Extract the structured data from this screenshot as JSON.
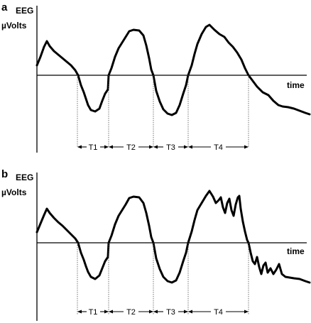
{
  "panels": [
    {
      "letter": "a",
      "y_label_line1": "EEG",
      "y_label_line2": "µVolts",
      "x_label": "time",
      "intervals": [
        "T1",
        "T2",
        "T3",
        "T4"
      ]
    },
    {
      "letter": "b",
      "y_label_line1": "EEG",
      "y_label_line2": "µVolts",
      "x_label": "time",
      "intervals": [
        "T1",
        "T2",
        "T3",
        "T4"
      ]
    }
  ]
}
